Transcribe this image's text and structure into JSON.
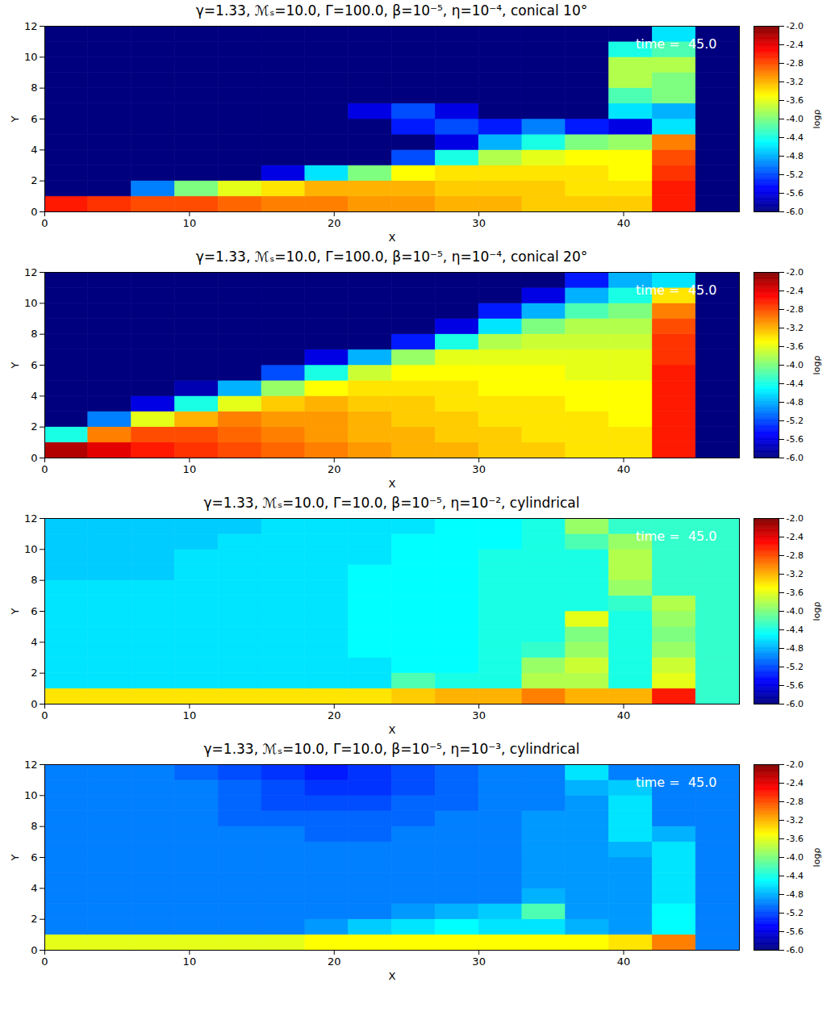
{
  "chart_data": [
    {
      "type": "heatmap",
      "title": "γ=1.33, ℳₛ=10.0, Γ=100.0, β=10⁻⁵, η=10⁻⁴, conical 10°",
      "annotation": "time =  45.0",
      "x_label": "X",
      "y_label": "Y",
      "xlim": [
        0,
        48
      ],
      "ylim": [
        0,
        12
      ],
      "xticks": [
        0,
        10,
        20,
        30,
        40
      ],
      "yticks": [
        0,
        2,
        4,
        6,
        8,
        10,
        12
      ],
      "x_bins": [
        0,
        3,
        6,
        9,
        12,
        15,
        18,
        21,
        24,
        27,
        30,
        33,
        36,
        39,
        42,
        45,
        48
      ],
      "y_bins": [
        0,
        1,
        2,
        3,
        4,
        5,
        6,
        7,
        8,
        9,
        10,
        11,
        12
      ],
      "cells": [
        [
          -2.6,
          -2.7,
          -2.8,
          -2.8,
          -2.9,
          -3.0,
          -3.0,
          -3.1,
          -3.1,
          -3.2,
          -3.2,
          -3.3,
          -3.3,
          -3.3,
          -2.6,
          -6
        ],
        [
          -6,
          -6,
          -5.0,
          -4.0,
          -3.6,
          -3.4,
          -3.2,
          -3.2,
          -3.2,
          -3.3,
          -3.3,
          -3.3,
          -3.4,
          -3.4,
          -2.6,
          -6
        ],
        [
          -6,
          -6,
          -6,
          -6,
          -6,
          -5.6,
          -4.6,
          -4.0,
          -3.5,
          -3.4,
          -3.4,
          -3.4,
          -3.4,
          -3.5,
          -2.7,
          -6
        ],
        [
          -6,
          -6,
          -6,
          -6,
          -6,
          -6,
          -6,
          -6,
          -5.2,
          -4.4,
          -3.8,
          -3.6,
          -3.5,
          -3.5,
          -2.8,
          -6
        ],
        [
          -6,
          -6,
          -6,
          -6,
          -6,
          -6,
          -6,
          -6,
          -6,
          -5.6,
          -4.8,
          -4.4,
          -4.0,
          -3.9,
          -3.0,
          -6
        ],
        [
          -6,
          -6,
          -6,
          -6,
          -6,
          -6,
          -6,
          -6,
          -5.4,
          -5.2,
          -5.4,
          -5.0,
          -5.4,
          -5.6,
          -4.6,
          -6
        ],
        [
          -6,
          -6,
          -6,
          -6,
          -6,
          -6,
          -6,
          -5.6,
          -5.2,
          -5.6,
          -6,
          -6,
          -6,
          -4.6,
          -4.8,
          -6
        ],
        [
          -6,
          -6,
          -6,
          -6,
          -6,
          -6,
          -6,
          -6,
          -6,
          -6,
          -6,
          -6,
          -6,
          -4.2,
          -4.0,
          -6
        ],
        [
          -6,
          -6,
          -6,
          -6,
          -6,
          -6,
          -6,
          -6,
          -6,
          -6,
          -6,
          -6,
          -6,
          -3.8,
          -4.0,
          -6
        ],
        [
          -6,
          -6,
          -6,
          -6,
          -6,
          -6,
          -6,
          -6,
          -6,
          -6,
          -6,
          -6,
          -6,
          -3.8,
          -3.8,
          -6
        ],
        [
          -6,
          -6,
          -6,
          -6,
          -6,
          -6,
          -6,
          -6,
          -6,
          -6,
          -6,
          -6,
          -6,
          -4.4,
          -4.2,
          -6
        ],
        [
          -6,
          -6,
          -6,
          -6,
          -6,
          -6,
          -6,
          -6,
          -6,
          -6,
          -6,
          -6,
          -6,
          -6,
          -4.6,
          -6
        ]
      ],
      "colorbar": {
        "label": "logρ",
        "range": [
          -6,
          -2
        ],
        "ticks": [
          {
            "value": -2,
            "label": "-2.0"
          },
          -2.4,
          -2.8,
          -3.2,
          -3.6,
          {
            "value": -4,
            "label": "-4.0"
          },
          -4.4,
          -4.8,
          -5.2,
          -5.6,
          {
            "value": -6,
            "label": "-6.0"
          }
        ]
      }
    },
    {
      "type": "heatmap",
      "title": "γ=1.33, ℳₛ=10.0, Γ=100.0, β=10⁻⁵, η=10⁻⁴, conical 20°",
      "annotation": "time =  45.0",
      "x_label": "X",
      "y_label": "Y",
      "xlim": [
        0,
        48
      ],
      "ylim": [
        0,
        12
      ],
      "xticks": [
        0,
        10,
        20,
        30,
        40
      ],
      "yticks": [
        0,
        2,
        4,
        6,
        8,
        10,
        12
      ],
      "x_bins": [
        0,
        3,
        6,
        9,
        12,
        15,
        18,
        21,
        24,
        27,
        30,
        33,
        36,
        39,
        42,
        45,
        48
      ],
      "y_bins": [
        0,
        1,
        2,
        3,
        4,
        5,
        6,
        7,
        8,
        9,
        10,
        11,
        12
      ],
      "cells": [
        [
          -2.2,
          -2.4,
          -2.6,
          -2.7,
          -2.8,
          -2.9,
          -3.0,
          -3.1,
          -3.2,
          -3.2,
          -3.3,
          -3.3,
          -3.4,
          -3.4,
          -2.6,
          -6
        ],
        [
          -4.4,
          -3.0,
          -2.8,
          -2.8,
          -2.9,
          -3.0,
          -3.1,
          -3.2,
          -3.2,
          -3.3,
          -3.3,
          -3.4,
          -3.4,
          -3.4,
          -2.6,
          -6
        ],
        [
          -6,
          -5.0,
          -3.6,
          -3.2,
          -3.0,
          -3.1,
          -3.1,
          -3.2,
          -3.3,
          -3.3,
          -3.4,
          -3.4,
          -3.4,
          -3.5,
          -2.6,
          -6
        ],
        [
          -6,
          -6,
          -5.6,
          -4.4,
          -3.6,
          -3.3,
          -3.2,
          -3.3,
          -3.3,
          -3.4,
          -3.4,
          -3.4,
          -3.5,
          -3.5,
          -2.6,
          -6
        ],
        [
          -6,
          -6,
          -6,
          -5.8,
          -4.8,
          -3.9,
          -3.5,
          -3.4,
          -3.4,
          -3.4,
          -3.5,
          -3.5,
          -3.5,
          -3.5,
          -2.6,
          -6
        ],
        [
          -6,
          -6,
          -6,
          -6,
          -6,
          -5.2,
          -4.4,
          -3.7,
          -3.5,
          -3.5,
          -3.5,
          -3.5,
          -3.6,
          -3.6,
          -2.6,
          -6
        ],
        [
          -6,
          -6,
          -6,
          -6,
          -6,
          -6,
          -5.6,
          -4.8,
          -3.9,
          -3.6,
          -3.6,
          -3.6,
          -3.6,
          -3.6,
          -2.7,
          -6
        ],
        [
          -6,
          -6,
          -6,
          -6,
          -6,
          -6,
          -6,
          -6,
          -5.4,
          -4.4,
          -3.8,
          -3.7,
          -3.7,
          -3.7,
          -2.7,
          -6
        ],
        [
          -6,
          -6,
          -6,
          -6,
          -6,
          -6,
          -6,
          -6,
          -6,
          -5.6,
          -4.6,
          -4.0,
          -3.8,
          -3.8,
          -2.8,
          -6
        ],
        [
          -6,
          -6,
          -6,
          -6,
          -6,
          -6,
          -6,
          -6,
          -6,
          -6,
          -5.4,
          -4.8,
          -4.2,
          -4.0,
          -3.0,
          -6
        ],
        [
          -6,
          -6,
          -6,
          -6,
          -6,
          -6,
          -6,
          -6,
          -6,
          -6,
          -6,
          -5.6,
          -4.8,
          -4.4,
          -3.4,
          -6
        ],
        [
          -6,
          -6,
          -6,
          -6,
          -6,
          -6,
          -6,
          -6,
          -6,
          -6,
          -6,
          -6,
          -5.4,
          -4.8,
          -4.6,
          -6
        ]
      ],
      "colorbar": {
        "label": "logρ",
        "range": [
          -6,
          -2
        ],
        "ticks": [
          {
            "value": -2,
            "label": "-2.0"
          },
          -2.4,
          -2.8,
          -3.2,
          -3.6,
          {
            "value": -4,
            "label": "-4.0"
          },
          -4.4,
          -4.8,
          -5.2,
          -5.6,
          {
            "value": -6,
            "label": "-6.0"
          }
        ]
      }
    },
    {
      "type": "heatmap",
      "title": "γ=1.33, ℳₛ=10.0, Γ=10.0, β=10⁻⁵, η=10⁻², cylindrical",
      "annotation": "time =  45.0",
      "x_label": "X",
      "y_label": "Y",
      "xlim": [
        0,
        48
      ],
      "ylim": [
        0,
        12
      ],
      "xticks": [
        0,
        10,
        20,
        30,
        40
      ],
      "yticks": [
        0,
        2,
        4,
        6,
        8,
        10,
        12
      ],
      "x_bins": [
        0,
        3,
        6,
        9,
        12,
        15,
        18,
        21,
        24,
        27,
        30,
        33,
        36,
        39,
        42,
        45,
        48
      ],
      "y_bins": [
        0,
        1,
        2,
        3,
        4,
        5,
        6,
        7,
        8,
        9,
        10,
        11,
        12
      ],
      "cells": [
        [
          -3.4,
          -3.4,
          -3.4,
          -3.4,
          -3.4,
          -3.4,
          -3.4,
          -3.4,
          -3.3,
          -3.2,
          -3.2,
          -3.0,
          -3.2,
          -3.2,
          -2.6,
          -4.3
        ],
        [
          -4.6,
          -4.6,
          -4.6,
          -4.6,
          -4.6,
          -4.6,
          -4.6,
          -4.6,
          -4.2,
          -4.4,
          -4.4,
          -3.8,
          -3.8,
          -4.4,
          -3.6,
          -4.3
        ],
        [
          -4.6,
          -4.6,
          -4.6,
          -4.6,
          -4.6,
          -4.6,
          -4.6,
          -4.6,
          -4.5,
          -4.5,
          -4.4,
          -3.9,
          -3.7,
          -4.4,
          -3.7,
          -4.3
        ],
        [
          -4.6,
          -4.6,
          -4.6,
          -4.6,
          -4.6,
          -4.6,
          -4.6,
          -4.5,
          -4.5,
          -4.5,
          -4.4,
          -4.3,
          -3.9,
          -4.4,
          -3.9,
          -4.3
        ],
        [
          -4.6,
          -4.6,
          -4.6,
          -4.6,
          -4.6,
          -4.6,
          -4.6,
          -4.5,
          -4.5,
          -4.5,
          -4.4,
          -4.4,
          -4.0,
          -4.4,
          -4.0,
          -4.3
        ],
        [
          -4.6,
          -4.6,
          -4.6,
          -4.6,
          -4.6,
          -4.6,
          -4.6,
          -4.5,
          -4.5,
          -4.5,
          -4.4,
          -4.4,
          -3.6,
          -4.4,
          -3.9,
          -4.3
        ],
        [
          -4.6,
          -4.6,
          -4.6,
          -4.6,
          -4.6,
          -4.6,
          -4.6,
          -4.5,
          -4.5,
          -4.5,
          -4.4,
          -4.4,
          -4.4,
          -4.3,
          -3.8,
          -4.3
        ],
        [
          -4.6,
          -4.6,
          -4.6,
          -4.6,
          -4.6,
          -4.6,
          -4.6,
          -4.5,
          -4.5,
          -4.5,
          -4.4,
          -4.4,
          -4.4,
          -3.9,
          -4.3,
          -4.3
        ],
        [
          -4.7,
          -4.7,
          -4.7,
          -4.6,
          -4.6,
          -4.6,
          -4.6,
          -4.5,
          -4.5,
          -4.5,
          -4.4,
          -4.4,
          -4.4,
          -3.8,
          -4.3,
          -4.3
        ],
        [
          -4.7,
          -4.7,
          -4.7,
          -4.6,
          -4.6,
          -4.6,
          -4.6,
          -4.6,
          -4.5,
          -4.5,
          -4.4,
          -4.4,
          -4.4,
          -3.8,
          -4.3,
          -4.3
        ],
        [
          -4.7,
          -4.7,
          -4.7,
          -4.7,
          -4.6,
          -4.6,
          -4.6,
          -4.6,
          -4.5,
          -4.5,
          -4.5,
          -4.4,
          -4.2,
          -3.9,
          -4.3,
          -4.3
        ],
        [
          -4.7,
          -4.7,
          -4.7,
          -4.7,
          -4.7,
          -4.6,
          -4.6,
          -4.6,
          -4.6,
          -4.5,
          -4.5,
          -4.4,
          -3.9,
          -4.3,
          -4.3,
          -4.3
        ]
      ],
      "colorbar": {
        "label": "logρ",
        "range": [
          -6,
          -2
        ],
        "ticks": [
          {
            "value": -2,
            "label": "-2.0"
          },
          -2.4,
          -2.8,
          -3.2,
          -3.6,
          {
            "value": -4,
            "label": "-4.0"
          },
          -4.4,
          -4.8,
          -5.2,
          -5.6,
          {
            "value": -6,
            "label": "-6.0"
          }
        ]
      }
    },
    {
      "type": "heatmap",
      "title": "γ=1.33, ℳₛ=10.0, Γ=10.0, β=10⁻⁵, η=10⁻³, cylindrical",
      "annotation": "time =  45.0",
      "x_label": "X",
      "y_label": "Y",
      "xlim": [
        0,
        48
      ],
      "ylim": [
        0,
        12
      ],
      "xticks": [
        0,
        10,
        20,
        30,
        40
      ],
      "yticks": [
        0,
        2,
        4,
        6,
        8,
        10,
        12
      ],
      "x_bins": [
        0,
        3,
        6,
        9,
        12,
        15,
        18,
        21,
        24,
        27,
        30,
        33,
        36,
        39,
        42,
        45,
        48
      ],
      "y_bins": [
        0,
        1,
        2,
        3,
        4,
        5,
        6,
        7,
        8,
        9,
        10,
        11,
        12
      ],
      "cells": [
        [
          -3.6,
          -3.6,
          -3.6,
          -3.6,
          -3.6,
          -3.6,
          -3.5,
          -3.5,
          -3.5,
          -3.5,
          -3.5,
          -3.5,
          -3.5,
          -3.4,
          -3.0,
          -5.0
        ],
        [
          -5.0,
          -5.0,
          -5.0,
          -5.0,
          -5.0,
          -5.0,
          -4.9,
          -4.7,
          -4.6,
          -4.5,
          -4.6,
          -4.6,
          -4.8,
          -4.9,
          -4.5,
          -5.0
        ],
        [
          -5.0,
          -5.0,
          -5.0,
          -5.0,
          -5.0,
          -5.0,
          -5.0,
          -5.0,
          -4.9,
          -4.8,
          -4.7,
          -4.2,
          -4.9,
          -4.9,
          -4.5,
          -5.0
        ],
        [
          -5.0,
          -5.0,
          -5.0,
          -5.0,
          -5.0,
          -5.0,
          -5.0,
          -5.0,
          -5.0,
          -5.0,
          -5.0,
          -4.8,
          -4.9,
          -4.9,
          -4.6,
          -5.0
        ],
        [
          -5.0,
          -5.0,
          -5.0,
          -5.0,
          -5.0,
          -5.0,
          -5.0,
          -5.0,
          -5.0,
          -5.0,
          -5.0,
          -4.9,
          -4.9,
          -4.9,
          -4.6,
          -5.0
        ],
        [
          -5.0,
          -5.0,
          -5.0,
          -5.0,
          -5.0,
          -5.0,
          -5.0,
          -5.0,
          -5.0,
          -5.0,
          -5.0,
          -4.9,
          -4.9,
          -4.9,
          -4.6,
          -5.0
        ],
        [
          -5.0,
          -5.0,
          -5.0,
          -5.0,
          -5.0,
          -5.0,
          -5.0,
          -5.0,
          -5.0,
          -5.0,
          -5.0,
          -4.9,
          -4.9,
          -4.8,
          -4.6,
          -5.0
        ],
        [
          -5.0,
          -5.0,
          -5.0,
          -5.0,
          -5.0,
          -5.0,
          -5.1,
          -5.1,
          -5.0,
          -5.0,
          -5.0,
          -4.9,
          -4.9,
          -4.6,
          -4.8,
          -5.0
        ],
        [
          -5.0,
          -5.0,
          -5.0,
          -5.0,
          -5.1,
          -5.1,
          -5.1,
          -5.1,
          -5.1,
          -5.0,
          -5.0,
          -4.9,
          -4.9,
          -4.6,
          -5.0,
          -5.0
        ],
        [
          -5.0,
          -5.0,
          -5.0,
          -5.0,
          -5.1,
          -5.2,
          -5.2,
          -5.2,
          -5.1,
          -5.1,
          -5.0,
          -5.0,
          -4.9,
          -4.6,
          -5.0,
          -5.0
        ],
        [
          -5.0,
          -5.0,
          -5.0,
          -5.0,
          -5.1,
          -5.2,
          -5.3,
          -5.3,
          -5.2,
          -5.1,
          -5.0,
          -5.0,
          -4.8,
          -4.7,
          -5.0,
          -5.0
        ],
        [
          -5.0,
          -5.0,
          -5.0,
          -5.1,
          -5.2,
          -5.3,
          -5.4,
          -5.3,
          -5.2,
          -5.1,
          -5.0,
          -5.0,
          -4.6,
          -5.0,
          -5.0,
          -5.0
        ]
      ],
      "colorbar": {
        "label": "logρ",
        "range": [
          -6,
          -2
        ],
        "ticks": [
          {
            "value": -2,
            "label": "-2.0"
          },
          -2.4,
          -2.8,
          -3.2,
          -3.6,
          {
            "value": -4,
            "label": "-4.0"
          },
          -4.4,
          -4.8,
          -5.2,
          -5.6,
          {
            "value": -6,
            "label": "-6.0"
          }
        ]
      }
    }
  ]
}
